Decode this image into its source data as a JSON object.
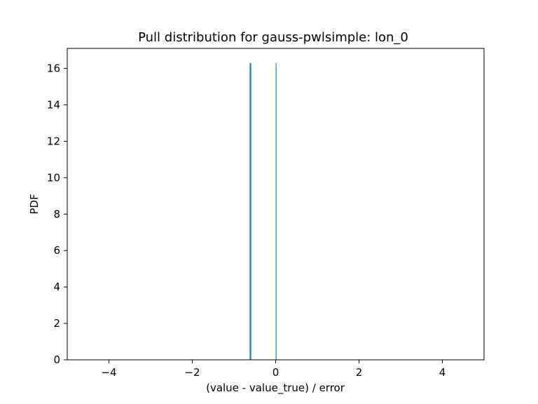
{
  "chart_data": {
    "type": "bar",
    "title": "Pull distribution for gauss-pwlsimple: lon_0",
    "xlabel": "(value - value_true) / error",
    "ylabel": "PDF",
    "xlim": [
      -5,
      5
    ],
    "ylim": [
      0,
      17.1
    ],
    "xticks": [
      -4,
      -2,
      0,
      2,
      4
    ],
    "xtick_labels": [
      "−4",
      "−2",
      "0",
      "2",
      "4"
    ],
    "yticks": [
      0,
      2,
      4,
      6,
      8,
      10,
      12,
      14,
      16
    ],
    "yticks_labels": [
      "0",
      "2",
      "4",
      "6",
      "8",
      "10",
      "12",
      "14",
      "16"
    ],
    "bins": [
      {
        "x": -0.605,
        "height": 16.3,
        "thick": true
      },
      {
        "x": 0.01,
        "height": 16.3,
        "thick": false
      }
    ],
    "bar_color": "#1f77b4",
    "grid": false
  }
}
